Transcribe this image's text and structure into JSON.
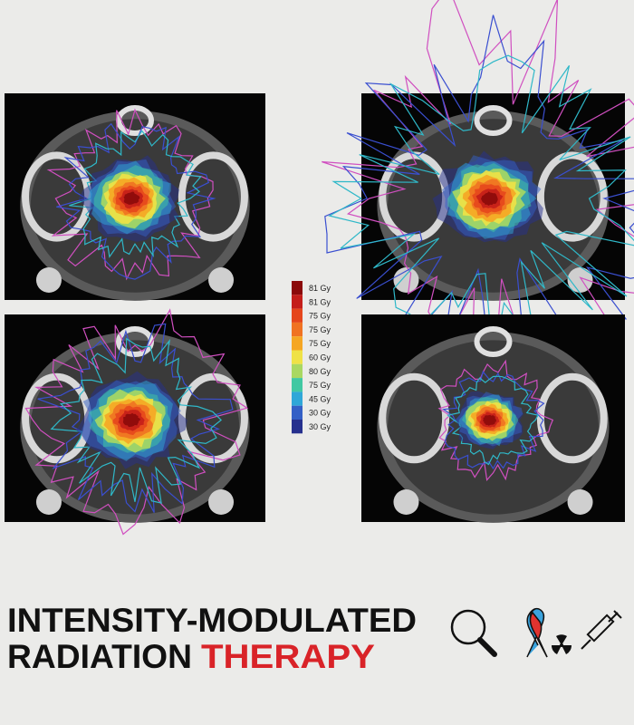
{
  "legend": {
    "items": [
      {
        "label": "81 Gy",
        "color": "#8b0a0a"
      },
      {
        "label": "81 Gy",
        "color": "#c41e1a"
      },
      {
        "label": "75 Gy",
        "color": "#e5461c"
      },
      {
        "label": "75 Gy",
        "color": "#f07222"
      },
      {
        "label": "75 Gy",
        "color": "#f5a623"
      },
      {
        "label": "60 Gy",
        "color": "#efe246"
      },
      {
        "label": "80 Gy",
        "color": "#a9d862"
      },
      {
        "label": "75 Gy",
        "color": "#41c8a2"
      },
      {
        "label": "45 Gy",
        "color": "#2fa7d8"
      },
      {
        "label": "30 Gy",
        "color": "#3460c6"
      },
      {
        "label": "30 Gy",
        "color": "#26308e"
      }
    ]
  },
  "title": {
    "line1": "INTENSITY-MODULATED",
    "line2a": "RADIATION",
    "line2b": "THERAPY"
  }
}
